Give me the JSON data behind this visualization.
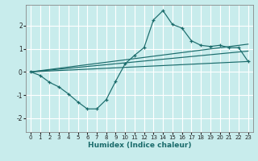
{
  "xlabel": "Humidex (Indice chaleur)",
  "bg_color": "#c8ecec",
  "grid_color": "#b0d8d8",
  "line_color": "#1a6b6b",
  "xlim": [
    -0.5,
    23.5
  ],
  "ylim": [
    -2.6,
    2.9
  ],
  "yticks": [
    -2,
    -1,
    0,
    1,
    2
  ],
  "xticks": [
    0,
    1,
    2,
    3,
    4,
    5,
    6,
    7,
    8,
    9,
    10,
    11,
    12,
    13,
    14,
    15,
    16,
    17,
    18,
    19,
    20,
    21,
    22,
    23
  ],
  "line1_x": [
    0,
    1,
    2,
    3,
    4,
    5,
    6,
    7,
    8,
    9,
    10,
    11,
    12,
    13,
    14,
    15,
    16,
    17,
    18,
    19,
    20,
    21,
    22,
    23
  ],
  "line1_y": [
    0.0,
    -0.15,
    -0.45,
    -0.65,
    -0.95,
    -1.3,
    -1.6,
    -1.6,
    -1.2,
    -0.4,
    0.35,
    0.72,
    1.05,
    2.25,
    2.65,
    2.05,
    1.9,
    1.35,
    1.15,
    1.1,
    1.15,
    1.05,
    1.05,
    0.45
  ],
  "line2_x": [
    0,
    23
  ],
  "line2_y": [
    0.0,
    0.45
  ],
  "line3_x": [
    0,
    23
  ],
  "line3_y": [
    0.0,
    0.9
  ],
  "line4_x": [
    0,
    23
  ],
  "line4_y": [
    0.0,
    1.2
  ]
}
